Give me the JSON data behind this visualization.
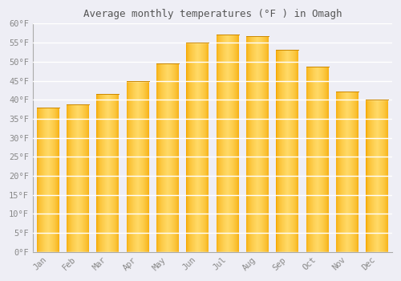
{
  "title": "Average monthly temperatures (°F ) in Omagh",
  "months": [
    "Jan",
    "Feb",
    "Mar",
    "Apr",
    "May",
    "Jun",
    "Jul",
    "Aug",
    "Sep",
    "Oct",
    "Nov",
    "Dec"
  ],
  "values": [
    38.0,
    38.7,
    41.5,
    45.0,
    49.5,
    55.0,
    57.2,
    56.8,
    53.2,
    48.7,
    42.1,
    40.0
  ],
  "ylim": [
    0,
    60
  ],
  "yticks": [
    0,
    5,
    10,
    15,
    20,
    25,
    30,
    35,
    40,
    45,
    50,
    55,
    60
  ],
  "bar_color_left": "#F5A800",
  "bar_color_center": "#FFD966",
  "background_color": "#EEEEF5",
  "plot_bg_color": "#EEEEF5",
  "grid_color": "#FFFFFF",
  "title_fontsize": 9,
  "tick_fontsize": 7.5,
  "bar_width": 0.75
}
